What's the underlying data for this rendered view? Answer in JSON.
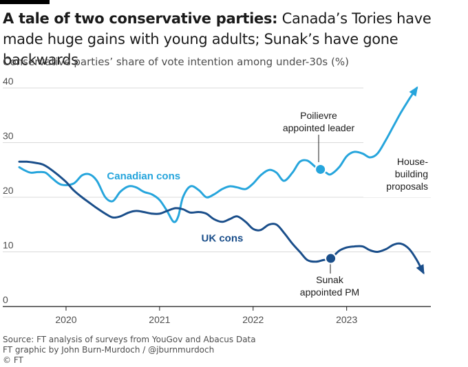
{
  "title": {
    "bold": "A tale of two conservative parties:",
    "rest": " Canada’s Tories have made huge gains with young adults; Sunak’s have gone backwards"
  },
  "subtitle": "Conservative parties’ share of vote intention among under-30s (%)",
  "annotations": {
    "poilievre_1": "Poilievre",
    "poilievre_2": "appointed leader",
    "sunak_1": "Sunak",
    "sunak_2": "appointed PM",
    "house_1": "House-",
    "house_2": "building",
    "house_3": "proposals"
  },
  "footer": {
    "source": "Source: FT analysis of surveys from YouGov and Abacus Data",
    "credit": "FT graphic by John Burn-Murdoch / @jburnmurdoch",
    "copyright": "© FT"
  },
  "colors": {
    "canada": "#26a5dc",
    "uk": "#1a4e8a",
    "grid": "#d9d9d9",
    "axis_text": "#4d4d4d"
  },
  "chart_data": {
    "type": "line",
    "title": "",
    "xlabel": "",
    "ylabel": "",
    "xlim": [
      2019.5,
      2023.9
    ],
    "ylim": [
      0,
      40
    ],
    "x_ticks": [
      2020,
      2021,
      2022,
      2023
    ],
    "y_ticks": [
      0,
      10,
      20,
      30,
      40
    ],
    "grid": true,
    "series": [
      {
        "name": "Canadian cons",
        "color": "#26a5dc",
        "x": [
          2019.5,
          2019.55,
          2019.62,
          2019.7,
          2019.78,
          2019.85,
          2019.95,
          2020.08,
          2020.17,
          2020.25,
          2020.33,
          2020.42,
          2020.5,
          2020.58,
          2020.67,
          2020.75,
          2020.83,
          2020.92,
          2021.0,
          2021.08,
          2021.15,
          2021.2,
          2021.25,
          2021.33,
          2021.42,
          2021.5,
          2021.58,
          2021.67,
          2021.75,
          2021.83,
          2021.92,
          2022.0,
          2022.08,
          2022.17,
          2022.25,
          2022.33,
          2022.42,
          2022.5,
          2022.58,
          2022.67,
          2022.72,
          2022.78,
          2022.83,
          2022.92,
          2023.0,
          2023.08,
          2023.17,
          2023.25,
          2023.33,
          2023.42,
          2023.5,
          2023.58,
          2023.67,
          2023.75
        ],
        "y": [
          25.5,
          25,
          24.5,
          24.6,
          24.5,
          23.5,
          22.3,
          22.5,
          24,
          24.2,
          23,
          20,
          19.3,
          21,
          22,
          21.8,
          21,
          20.5,
          19.5,
          17.5,
          15.5,
          16.5,
          20,
          22,
          21.3,
          20,
          20.5,
          21.5,
          22,
          21.8,
          21.5,
          22.5,
          24,
          25,
          24.5,
          23,
          24.5,
          26.5,
          26.7,
          25.5,
          25.1,
          24.5,
          24.2,
          25.5,
          27.5,
          28.3,
          28,
          27.3,
          28,
          30.5,
          33,
          35.5,
          38,
          40
        ]
      },
      {
        "name": "UK cons",
        "color": "#1a4e8a",
        "x": [
          2019.5,
          2019.58,
          2019.67,
          2019.75,
          2019.83,
          2019.92,
          2020.0,
          2020.08,
          2020.17,
          2020.25,
          2020.33,
          2020.42,
          2020.5,
          2020.58,
          2020.67,
          2020.75,
          2020.83,
          2020.92,
          2021.0,
          2021.08,
          2021.17,
          2021.25,
          2021.33,
          2021.42,
          2021.5,
          2021.58,
          2021.67,
          2021.75,
          2021.83,
          2021.92,
          2022.0,
          2022.08,
          2022.17,
          2022.25,
          2022.33,
          2022.42,
          2022.5,
          2022.58,
          2022.67,
          2022.75,
          2022.83,
          2022.92,
          2023.0,
          2023.08,
          2023.17,
          2023.25,
          2023.33,
          2023.42,
          2023.5,
          2023.58,
          2023.67,
          2023.75,
          2023.82
        ],
        "y": [
          26.5,
          26.5,
          26.3,
          26,
          25.2,
          24,
          22.8,
          21.3,
          20,
          19,
          18,
          17,
          16.3,
          16.5,
          17.2,
          17.5,
          17.3,
          17,
          17,
          17.5,
          18,
          17.8,
          17.2,
          17.3,
          17,
          16,
          15.5,
          16,
          16.5,
          15.5,
          14.2,
          14,
          15,
          15,
          13.5,
          11.5,
          10,
          8.5,
          8.2,
          8.5,
          8.8,
          10.2,
          10.8,
          11,
          11,
          10.3,
          10,
          10.5,
          11.3,
          11.5,
          10.5,
          8.5,
          6.2
        ]
      }
    ],
    "markers": [
      {
        "series": "Canadian cons",
        "x": 2022.72,
        "y": 25.1
      },
      {
        "series": "UK cons",
        "x": 2022.83,
        "y": 8.8
      }
    ],
    "series_labels": [
      {
        "text": "Canadian cons",
        "series": "Canadian cons",
        "x": 2020.83,
        "y": 23.3
      },
      {
        "text": "UK cons",
        "series": "UK cons",
        "x": 2021.67,
        "y": 11.9
      }
    ]
  }
}
